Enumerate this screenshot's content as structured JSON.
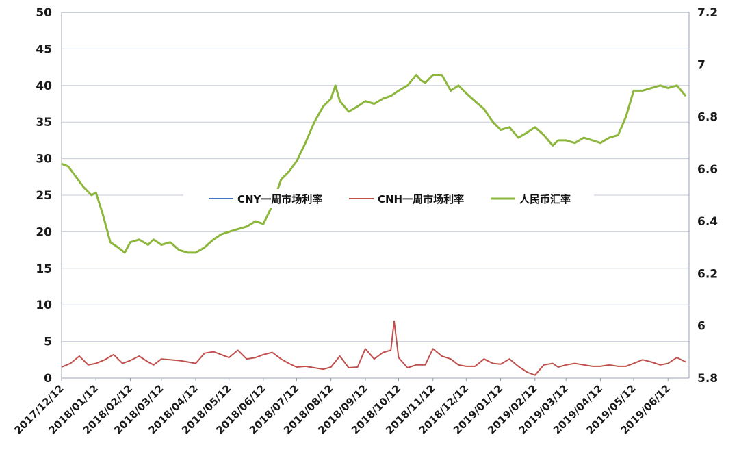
{
  "chart_data": {
    "type": "line",
    "x_ticks": [
      "2017/12/12",
      "2018/01/12",
      "2018/02/12",
      "2018/03/12",
      "2018/04/12",
      "2018/05/12",
      "2018/06/12",
      "2018/07/12",
      "2018/08/12",
      "2018/09/12",
      "2018/10/12",
      "2018/11/12",
      "2018/12/12",
      "2019/01/12",
      "2019/02/12",
      "2019/03/12",
      "2019/04/12",
      "2019/05/12",
      "2019/06/12"
    ],
    "y_left": {
      "min": 0,
      "max": 50,
      "ticks": [
        "0",
        "5",
        "10",
        "15",
        "20",
        "25",
        "30",
        "35",
        "40",
        "45",
        "50"
      ]
    },
    "y_right": {
      "min": 5.8,
      "max": 7.2,
      "ticks": [
        "5.8",
        "6",
        "6.2",
        "6.4",
        "6.6",
        "6.8",
        "7",
        "7.2"
      ]
    },
    "grid": "horizontal",
    "legend_position": "center",
    "series": [
      {
        "name": "CNY一周市场利率",
        "color": "#4472C4",
        "axis": "left",
        "x": [],
        "values": []
      },
      {
        "name": "CNH一周市场利率",
        "color": "#C0504D",
        "axis": "left",
        "x": [
          "2017/12/12",
          "2017/12/20",
          "2017/12/28",
          "2018/01/05",
          "2018/01/12",
          "2018/01/20",
          "2018/01/28",
          "2018/02/05",
          "2018/02/12",
          "2018/02/20",
          "2018/02/28",
          "2018/03/05",
          "2018/03/12",
          "2018/03/20",
          "2018/03/28",
          "2018/04/05",
          "2018/04/12",
          "2018/04/20",
          "2018/04/28",
          "2018/05/05",
          "2018/05/12",
          "2018/05/20",
          "2018/05/28",
          "2018/06/05",
          "2018/06/12",
          "2018/06/20",
          "2018/06/28",
          "2018/07/05",
          "2018/07/12",
          "2018/07/20",
          "2018/07/28",
          "2018/08/05",
          "2018/08/12",
          "2018/08/20",
          "2018/08/28",
          "2018/09/05",
          "2018/09/12",
          "2018/09/20",
          "2018/09/28",
          "2018/10/05",
          "2018/10/08",
          "2018/10/12",
          "2018/10/20",
          "2018/10/28",
          "2018/11/05",
          "2018/11/12",
          "2018/11/20",
          "2018/11/28",
          "2018/12/05",
          "2018/12/12",
          "2018/12/20",
          "2018/12/28",
          "2019/01/05",
          "2019/01/12",
          "2019/01/20",
          "2019/01/28",
          "2019/02/05",
          "2019/02/12",
          "2019/02/20",
          "2019/02/28",
          "2019/03/05",
          "2019/03/12",
          "2019/03/20",
          "2019/03/28",
          "2019/04/05",
          "2019/04/12",
          "2019/04/20",
          "2019/04/28",
          "2019/05/05",
          "2019/05/12",
          "2019/05/20",
          "2019/05/28",
          "2019/06/05",
          "2019/06/12",
          "2019/06/20",
          "2019/06/28"
        ],
        "values": [
          1.5,
          2.0,
          3.0,
          1.8,
          2.0,
          2.5,
          3.2,
          2.0,
          2.4,
          3.0,
          2.2,
          1.8,
          2.6,
          2.5,
          2.4,
          2.2,
          2.0,
          3.4,
          3.6,
          3.2,
          2.8,
          3.8,
          2.6,
          2.8,
          3.2,
          3.5,
          2.6,
          2.0,
          1.5,
          1.6,
          1.4,
          1.2,
          1.5,
          3.0,
          1.4,
          1.5,
          4.0,
          2.6,
          3.5,
          3.8,
          7.8,
          2.8,
          1.4,
          1.8,
          1.8,
          4.0,
          3.0,
          2.6,
          1.8,
          1.6,
          1.6,
          2.6,
          2.0,
          1.9,
          2.6,
          1.6,
          0.8,
          0.4,
          1.8,
          2.0,
          1.5,
          1.8,
          2.0,
          1.8,
          1.6,
          1.6,
          1.8,
          1.6,
          1.6,
          2.0,
          2.5,
          2.2,
          1.8,
          2.0,
          2.8,
          2.2
        ]
      },
      {
        "name": "人民币汇率",
        "color": "#8DB63C",
        "axis": "right",
        "x": [
          "2017/12/12",
          "2017/12/18",
          "2017/12/25",
          "2018/01/01",
          "2018/01/08",
          "2018/01/12",
          "2018/01/18",
          "2018/01/25",
          "2018/02/01",
          "2018/02/07",
          "2018/02/12",
          "2018/02/20",
          "2018/02/28",
          "2018/03/05",
          "2018/03/12",
          "2018/03/20",
          "2018/03/28",
          "2018/04/05",
          "2018/04/12",
          "2018/04/20",
          "2018/04/28",
          "2018/05/05",
          "2018/05/12",
          "2018/05/20",
          "2018/05/28",
          "2018/06/05",
          "2018/06/12",
          "2018/06/20",
          "2018/06/28",
          "2018/07/05",
          "2018/07/12",
          "2018/07/20",
          "2018/07/28",
          "2018/08/05",
          "2018/08/12",
          "2018/08/16",
          "2018/08/20",
          "2018/08/28",
          "2018/09/05",
          "2018/09/12",
          "2018/09/20",
          "2018/09/28",
          "2018/10/05",
          "2018/10/12",
          "2018/10/20",
          "2018/10/28",
          "2018/11/01",
          "2018/11/05",
          "2018/11/12",
          "2018/11/20",
          "2018/11/28",
          "2018/12/05",
          "2018/12/12",
          "2018/12/20",
          "2018/12/28",
          "2019/01/05",
          "2019/01/12",
          "2019/01/20",
          "2019/01/28",
          "2019/02/05",
          "2019/02/12",
          "2019/02/20",
          "2019/02/28",
          "2019/03/05",
          "2019/03/12",
          "2019/03/20",
          "2019/03/28",
          "2019/04/05",
          "2019/04/12",
          "2019/04/20",
          "2019/04/28",
          "2019/05/05",
          "2019/05/12",
          "2019/05/20",
          "2019/05/28",
          "2019/06/05",
          "2019/06/12",
          "2019/06/20",
          "2019/06/28"
        ],
        "values": [
          6.62,
          6.61,
          6.57,
          6.53,
          6.5,
          6.51,
          6.43,
          6.32,
          6.3,
          6.28,
          6.32,
          6.33,
          6.31,
          6.33,
          6.31,
          6.32,
          6.29,
          6.28,
          6.28,
          6.3,
          6.33,
          6.35,
          6.36,
          6.37,
          6.38,
          6.4,
          6.39,
          6.46,
          6.56,
          6.59,
          6.63,
          6.7,
          6.78,
          6.84,
          6.87,
          6.92,
          6.86,
          6.82,
          6.84,
          6.86,
          6.85,
          6.87,
          6.88,
          6.9,
          6.92,
          6.96,
          6.94,
          6.93,
          6.96,
          6.96,
          6.9,
          6.92,
          6.89,
          6.86,
          6.83,
          6.78,
          6.75,
          6.76,
          6.72,
          6.74,
          6.76,
          6.73,
          6.69,
          6.71,
          6.71,
          6.7,
          6.72,
          6.71,
          6.7,
          6.72,
          6.73,
          6.8,
          6.9,
          6.9,
          6.91,
          6.92,
          6.91,
          6.92,
          6.88
        ]
      }
    ]
  }
}
